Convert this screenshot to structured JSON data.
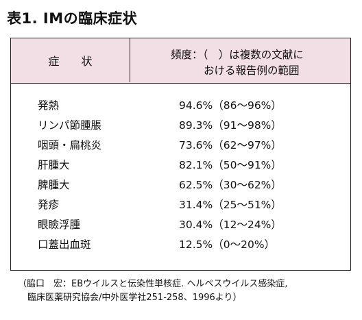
{
  "title": "表1. IMの臨床症状",
  "table": {
    "header": {
      "symptom": "症　　状",
      "frequency_line1": "頻度：（　）は複数の文献に",
      "frequency_line2": "おける報告例の範囲"
    },
    "rows": [
      {
        "symptom": "発熱",
        "frequency": "94.6%（86～96%）"
      },
      {
        "symptom": "リンパ節腫脹",
        "frequency": "89.3%（91～98%）"
      },
      {
        "symptom": "咽頭・扁桃炎",
        "frequency": "73.6%（62～97%）"
      },
      {
        "symptom": "肝腫大",
        "frequency": "82.1%（50～91%）"
      },
      {
        "symptom": "脾腫大",
        "frequency": "62.5%（30～62%）"
      },
      {
        "symptom": "発疹",
        "frequency": "31.4%（25～51%）"
      },
      {
        "symptom": "眼瞼浮腫",
        "frequency": "30.4%（12～24%）"
      },
      {
        "symptom": "口蓋出血斑",
        "frequency": "12.5%（0～20%）"
      }
    ]
  },
  "source": {
    "line1": "（脇口　宏：EBウイルスと伝染性単核症. ヘルペスウイルス感染症,",
    "line2": "臨床医薬研究協会/中外医学社251-258、1996より）"
  },
  "colors": {
    "header_background": "#f2dfe6",
    "border": "#222222",
    "text": "#111111"
  }
}
